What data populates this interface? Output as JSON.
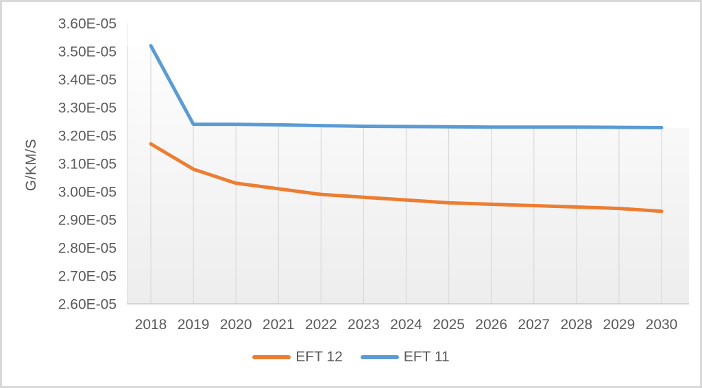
{
  "window": {
    "background": "#ffffff",
    "border_color": "#d9d9d9"
  },
  "chart_data": {
    "type": "line",
    "title": "",
    "xlabel": "",
    "ylabel": "G/KM/S",
    "categories": [
      "2018",
      "2019",
      "2020",
      "2021",
      "2022",
      "2023",
      "2024",
      "2025",
      "2026",
      "2027",
      "2028",
      "2029",
      "2030"
    ],
    "series": [
      {
        "name": "EFT 12",
        "color": "#ED7D31",
        "values": [
          3.17e-05,
          3.08e-05,
          3.03e-05,
          3.01e-05,
          2.99e-05,
          2.98e-05,
          2.97e-05,
          2.96e-05,
          2.955e-05,
          2.95e-05,
          2.945e-05,
          2.94e-05,
          2.93e-05
        ]
      },
      {
        "name": "EFT 11",
        "color": "#5B9BD5",
        "values": [
          3.52e-05,
          3.24e-05,
          3.24e-05,
          3.238e-05,
          3.235e-05,
          3.233e-05,
          3.232e-05,
          3.231e-05,
          3.23e-05,
          3.23e-05,
          3.23e-05,
          3.229e-05,
          3.228e-05
        ]
      }
    ],
    "ylim": [
      2.6e-05,
      3.6e-05
    ],
    "yticks": [
      {
        "value": 2.6e-05,
        "label": "2.60E-05"
      },
      {
        "value": 2.7e-05,
        "label": "2.70E-05"
      },
      {
        "value": 2.8e-05,
        "label": "2.80E-05"
      },
      {
        "value": 2.9e-05,
        "label": "2.90E-05"
      },
      {
        "value": 3e-05,
        "label": "3.00E-05"
      },
      {
        "value": 3.1e-05,
        "label": "3.10E-05"
      },
      {
        "value": 3.2e-05,
        "label": "3.20E-05"
      },
      {
        "value": 3.3e-05,
        "label": "3.30E-05"
      },
      {
        "value": 3.4e-05,
        "label": "3.40E-05"
      },
      {
        "value": 3.5e-05,
        "label": "3.50E-05"
      },
      {
        "value": 3.6e-05,
        "label": "3.60E-05"
      }
    ],
    "grid": "vertical-only",
    "gridline_color": "#d9d9d9",
    "axis_line_color": "#c9c9c9",
    "axis_text_color": "#595959",
    "plot_fill_top": "#ffffff",
    "plot_fill_bottom": "#ededed",
    "legend_position": "bottom-center"
  },
  "legend": {
    "items": [
      {
        "label": "EFT 12",
        "color": "#ED7D31"
      },
      {
        "label": "EFT 11",
        "color": "#5B9BD5"
      }
    ]
  }
}
